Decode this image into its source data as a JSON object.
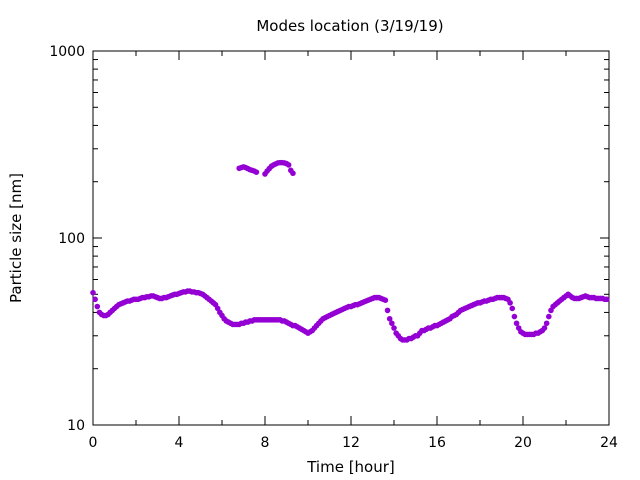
{
  "chart_data": {
    "type": "scatter",
    "title": "Modes location (3/19/19)",
    "xlabel": "Time [hour]",
    "ylabel": "Particle size [nm]",
    "xlim": [
      0,
      24
    ],
    "ylim": [
      10,
      1000
    ],
    "yscale": "log",
    "grid": false,
    "marker_color": "#9400d3",
    "xticks": [
      0,
      4,
      8,
      12,
      16,
      20,
      24
    ],
    "xtick_labels": [
      "0",
      "4",
      "8",
      "12",
      "16",
      "20",
      "24"
    ],
    "yticks": [
      10,
      100,
      1000
    ],
    "ytick_labels": [
      "10",
      "100",
      "1000"
    ],
    "series": [
      {
        "x": [
          0.0,
          0.1,
          0.2,
          0.3,
          0.4,
          0.5,
          0.6,
          0.7,
          0.8,
          0.9,
          1.0,
          1.1,
          1.2,
          1.3,
          1.4,
          1.5,
          1.6,
          1.7,
          1.8,
          1.9,
          2.0,
          2.1,
          2.2,
          2.3,
          2.4,
          2.5,
          2.6,
          2.7,
          2.8,
          2.9,
          3.0,
          3.1,
          3.2,
          3.3,
          3.4,
          3.5,
          3.6,
          3.7,
          3.8,
          3.9,
          4.0,
          4.1,
          4.2,
          4.3,
          4.4,
          4.5,
          4.6,
          4.7,
          4.8,
          4.9,
          5.0,
          5.1,
          5.2,
          5.3,
          5.4,
          5.5,
          5.6,
          5.7,
          5.8,
          5.9,
          6.0,
          6.1,
          6.2,
          6.3,
          6.4,
          6.5,
          6.6,
          6.7,
          6.8,
          6.9,
          7.0,
          7.1,
          7.2,
          7.3,
          7.4,
          7.5,
          7.6,
          7.7,
          7.8,
          7.9,
          8.0,
          8.1,
          8.2,
          8.3,
          8.4,
          8.5,
          8.6,
          8.7,
          8.8,
          8.9,
          9.0,
          9.1,
          9.2,
          9.3,
          9.4,
          9.5,
          9.6,
          9.7,
          9.8,
          9.9,
          10.0,
          10.1,
          10.2,
          10.3,
          10.4,
          10.5,
          10.6,
          10.7,
          10.8,
          10.9,
          11.0,
          11.1,
          11.2,
          11.3,
          11.4,
          11.5,
          11.6,
          11.7,
          11.8,
          11.9,
          12.0,
          12.1,
          12.2,
          12.3,
          12.4,
          12.5,
          12.6,
          12.7,
          12.8,
          12.9,
          13.0,
          13.1,
          13.2,
          13.3,
          13.4,
          13.5,
          13.6,
          13.7,
          13.8,
          13.9,
          14.0,
          14.1,
          14.2,
          14.3,
          14.4,
          14.5,
          14.6,
          14.7,
          14.8,
          14.9,
          15.0,
          15.1,
          15.2,
          15.3,
          15.4,
          15.5,
          15.6,
          15.7,
          15.8,
          15.9,
          16.0,
          16.1,
          16.2,
          16.3,
          16.4,
          16.5,
          16.6,
          16.7,
          16.8,
          16.9,
          17.0,
          17.1,
          17.2,
          17.3,
          17.4,
          17.5,
          17.6,
          17.7,
          17.8,
          17.9,
          18.0,
          18.1,
          18.2,
          18.3,
          18.4,
          18.5,
          18.6,
          18.7,
          18.8,
          18.9,
          19.0,
          19.1,
          19.2,
          19.3,
          19.4,
          19.5,
          19.6,
          19.7,
          19.8,
          19.9,
          20.0,
          20.1,
          20.2,
          20.3,
          20.4,
          20.5,
          20.6,
          20.7,
          20.8,
          20.9,
          21.0,
          21.1,
          21.2,
          21.3,
          21.4,
          21.5,
          21.6,
          21.7,
          21.8,
          21.9,
          22.0,
          22.1,
          22.2,
          22.3,
          22.4,
          22.5,
          22.6,
          22.7,
          22.8,
          22.9,
          23.0,
          23.1,
          23.2,
          23.3,
          23.4,
          23.5,
          23.6,
          23.7,
          23.8,
          23.9
        ],
        "y": [
          51,
          47,
          43,
          40,
          39,
          38.5,
          38.5,
          39,
          40,
          41,
          42,
          43,
          44,
          44.5,
          45,
          45.5,
          46,
          46,
          46.5,
          47,
          47,
          47,
          47.5,
          48,
          48,
          48.5,
          48.5,
          49,
          49,
          48.5,
          48,
          47.5,
          47.5,
          48,
          48,
          48.5,
          49,
          49.5,
          50,
          50,
          50.5,
          51,
          51.5,
          51.5,
          52,
          52,
          51.5,
          51.5,
          51,
          51,
          50.5,
          50,
          49,
          48,
          47,
          46,
          45,
          44,
          42,
          40,
          38.5,
          37,
          36,
          35.5,
          35,
          34.5,
          34.5,
          34.5,
          34.5,
          35,
          35,
          35.5,
          35.5,
          36,
          36,
          36.5,
          36.5,
          36.5,
          36.5,
          36.5,
          36.5,
          36.5,
          36.5,
          36.5,
          36.5,
          36.5,
          36.5,
          36.5,
          36,
          36,
          35.5,
          35,
          34.5,
          34,
          34,
          33.5,
          33,
          32.5,
          32,
          31.5,
          31,
          31.5,
          32,
          33,
          34,
          35,
          36,
          37,
          37.5,
          38,
          38.5,
          39,
          39.5,
          40,
          40.5,
          41,
          41.5,
          42,
          42.5,
          43,
          43,
          43.5,
          44,
          44,
          44.5,
          45,
          45.5,
          46,
          46.5,
          47,
          47.5,
          48,
          48,
          48,
          47.5,
          47,
          46.5,
          41,
          37,
          35,
          33,
          31,
          30,
          29,
          28.5,
          28.5,
          28.5,
          29,
          29,
          29.5,
          30,
          30,
          31,
          32,
          32,
          32.5,
          33,
          33,
          33.5,
          34,
          34,
          34.5,
          35,
          35.5,
          36,
          36.5,
          37,
          38,
          38.5,
          39,
          40,
          41,
          41.5,
          42,
          42.5,
          43,
          43.5,
          44,
          44.5,
          45,
          45,
          45.5,
          46,
          46,
          46.5,
          47,
          47,
          47.5,
          48,
          48,
          48,
          48,
          47.5,
          47,
          45,
          42,
          38,
          35,
          33,
          31.5,
          31,
          30.5,
          30.5,
          30.5,
          30.5,
          30.5,
          31,
          31,
          31.5,
          32,
          33,
          35,
          38,
          41,
          43,
          44,
          45,
          46,
          47,
          48,
          49,
          50,
          49,
          48,
          47.5,
          47.5,
          47.5,
          48,
          48.5,
          49,
          48.5,
          48,
          48,
          48,
          47.5,
          47.5,
          47.5,
          47.5,
          47,
          47
        ]
      },
      {
        "x": [
          6.8,
          6.9,
          7.0,
          7.1,
          7.2,
          7.3,
          7.4,
          7.5,
          7.6,
          8.0,
          8.1,
          8.2,
          8.3,
          8.4,
          8.5,
          8.6,
          8.7,
          8.8,
          8.9,
          9.0,
          9.1,
          9.2,
          9.3
        ],
        "y": [
          236,
          238,
          240,
          238,
          235,
          232,
          230,
          228,
          225,
          220,
          228,
          235,
          242,
          246,
          249,
          252,
          253,
          253,
          252,
          250,
          246,
          230,
          222
        ]
      }
    ]
  }
}
